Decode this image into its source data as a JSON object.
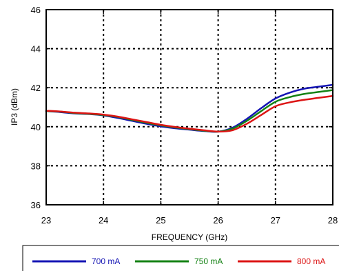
{
  "chart_data": {
    "type": "line",
    "title": "",
    "xlabel": "FREQUENCY (GHz)",
    "ylabel": "IP3  (dBm)",
    "xlim": [
      23,
      28
    ],
    "ylim": [
      36,
      46
    ],
    "xticks": [
      "23",
      "24",
      "25",
      "26",
      "27",
      "28"
    ],
    "yticks": [
      "36",
      "38",
      "40",
      "42",
      "44",
      "46"
    ],
    "grid": true,
    "legend_position": "bottom",
    "series": [
      {
        "name": "700 mA",
        "color": "#1414b4",
        "x": [
          23,
          23.25,
          23.5,
          23.75,
          24,
          24.25,
          24.5,
          24.75,
          25,
          25.25,
          25.5,
          25.75,
          26,
          26.25,
          26.5,
          26.75,
          27,
          27.25,
          27.5,
          27.75,
          28
        ],
        "y": [
          40.8,
          40.75,
          40.68,
          40.65,
          40.58,
          40.45,
          40.3,
          40.15,
          40.02,
          39.92,
          39.85,
          39.78,
          39.75,
          39.95,
          40.4,
          40.95,
          41.45,
          41.75,
          41.95,
          42.05,
          42.15
        ]
      },
      {
        "name": "750 mA",
        "color": "#148214",
        "x": [
          23,
          23.25,
          23.5,
          23.75,
          24,
          24.25,
          24.5,
          24.75,
          25,
          25.25,
          25.5,
          25.75,
          26,
          26.25,
          26.5,
          26.75,
          27,
          27.25,
          27.5,
          27.75,
          28
        ],
        "y": [
          40.8,
          40.77,
          40.7,
          40.66,
          40.6,
          40.5,
          40.35,
          40.2,
          40.07,
          39.96,
          39.88,
          39.8,
          39.75,
          39.9,
          40.3,
          40.8,
          41.28,
          41.52,
          41.68,
          41.78,
          41.88
        ]
      },
      {
        "name": "800 mA",
        "color": "#dc1414",
        "x": [
          23,
          23.25,
          23.5,
          23.75,
          24,
          24.25,
          24.5,
          24.75,
          25,
          25.25,
          25.5,
          25.75,
          26,
          26.25,
          26.5,
          26.75,
          27,
          27.25,
          27.5,
          27.75,
          28
        ],
        "y": [
          40.82,
          40.78,
          40.72,
          40.68,
          40.62,
          40.52,
          40.38,
          40.24,
          40.1,
          39.99,
          39.9,
          39.82,
          39.75,
          39.82,
          40.15,
          40.6,
          41.05,
          41.25,
          41.38,
          41.48,
          41.58
        ]
      }
    ]
  }
}
